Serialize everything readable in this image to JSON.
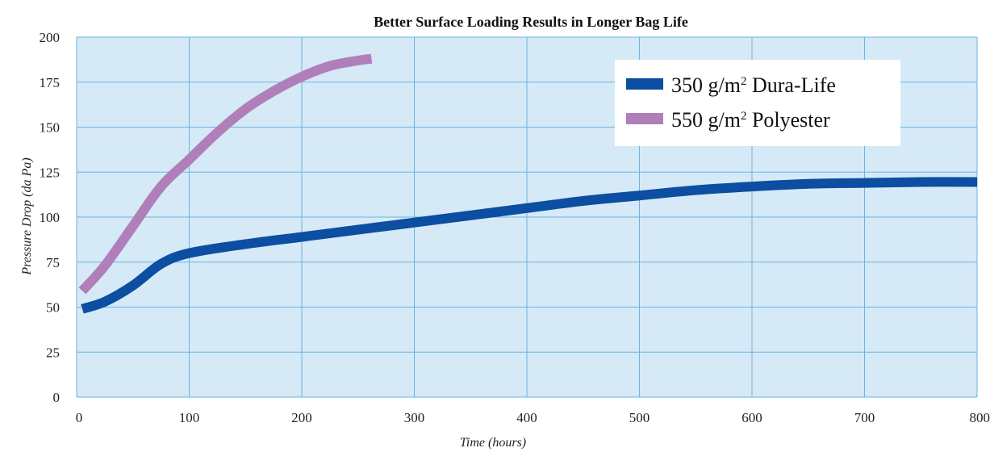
{
  "chart_data": {
    "type": "line",
    "title": "Better Surface Loading Results in Longer Bag Life",
    "xlabel": "Time (hours)",
    "ylabel": "Pressure Drop (da Pa)",
    "xlim": [
      0,
      800
    ],
    "ylim": [
      0,
      200
    ],
    "x_ticks": [
      0,
      100,
      200,
      300,
      400,
      500,
      600,
      700,
      800
    ],
    "y_ticks": [
      0,
      25,
      50,
      75,
      100,
      125,
      150,
      175,
      200
    ],
    "grid": true,
    "legend_position": "top-right",
    "plot_background": "#d6e9f6",
    "grid_color": "#6ab4e4",
    "series": [
      {
        "name": "350 g/m2 Dura-Life",
        "legend_main": "350 g/m",
        "legend_sup": "2",
        "legend_rest": " Dura-Life",
        "color": "#0b4ea2",
        "x": [
          5,
          25,
          50,
          75,
          100,
          150,
          200,
          250,
          300,
          350,
          400,
          450,
          500,
          550,
          600,
          650,
          700,
          750,
          800
        ],
        "y": [
          49,
          53,
          62,
          74,
          80,
          85,
          89,
          93,
          97,
          101,
          105,
          109,
          112,
          115,
          117,
          118.5,
          119,
          119.5,
          119.5
        ]
      },
      {
        "name": "550 g/m2 Polyester",
        "legend_main": "550 g/m",
        "legend_sup": "2",
        "legend_rest": " Polyester",
        "color": "#b07fba",
        "x": [
          5,
          25,
          50,
          75,
          100,
          125,
          150,
          175,
          200,
          225,
          250,
          262
        ],
        "y": [
          59,
          73,
          95,
          117,
          132,
          147,
          160,
          170,
          178,
          184,
          187,
          188
        ]
      }
    ]
  }
}
